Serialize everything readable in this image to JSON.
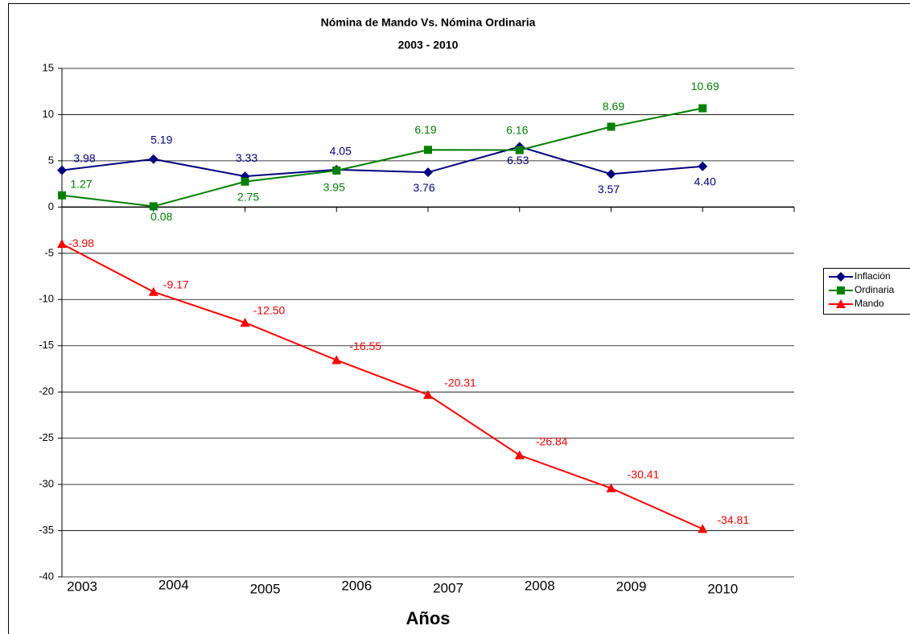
{
  "chart_data": {
    "type": "line",
    "title": "Nómina de Mando Vs. Nómina Ordinaria",
    "subtitle": "2003 - 2010",
    "x_label": "Años",
    "categories": [
      "2003",
      "2004",
      "2005",
      "2006",
      "2007",
      "2008",
      "2009",
      "2010"
    ],
    "series": [
      {
        "name": "Inflación",
        "color": "#000080",
        "marker": "diamond",
        "values": [
          3.98,
          5.19,
          3.33,
          4.05,
          3.76,
          6.53,
          3.57,
          4.4
        ],
        "value_labels": [
          "3.98",
          "5.19",
          "3.33",
          "4.05",
          "3.76",
          "6.53",
          "3.57",
          "4.40"
        ]
      },
      {
        "name": "Ordinaria",
        "color": "#008000",
        "marker": "square",
        "values": [
          1.27,
          0.08,
          2.75,
          3.95,
          6.19,
          6.16,
          8.69,
          10.69
        ],
        "value_labels": [
          "1.27",
          "0.08",
          "2.75",
          "3.95",
          "6.19",
          "6.16",
          "8.69",
          "10.69"
        ]
      },
      {
        "name": "Mando",
        "color": "#ff0000",
        "marker": "triangle",
        "values": [
          -3.98,
          -9.17,
          -12.5,
          -16.55,
          -20.31,
          -26.84,
          -30.41,
          -34.81
        ],
        "value_labels": [
          "-3.98",
          "-9.17",
          "-12.50",
          "-16.55",
          "-20.31",
          "-26.84",
          "-30.41",
          "-34.81"
        ]
      }
    ],
    "ylim": [
      -40,
      15
    ],
    "yticks": [
      -40,
      -35,
      -30,
      -25,
      -20,
      -15,
      -10,
      -5,
      0,
      5,
      10,
      15
    ],
    "grid": true,
    "legend": "right"
  }
}
